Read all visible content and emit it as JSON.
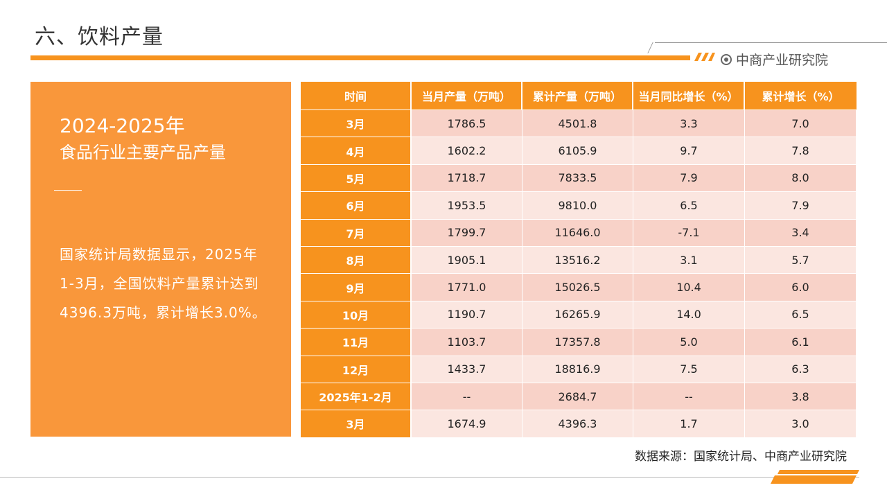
{
  "header": {
    "title": "六、饮料产量",
    "brand": "中商产业研究院"
  },
  "left_panel": {
    "year": "2024-2025年",
    "subtitle": "食品行业主要产品产量",
    "body": "国家统计局数据显示，2025年1-3月，全国饮料产量累计达到4396.3万吨，累计增长3.0%。"
  },
  "table": {
    "headers": [
      "时间",
      "当月产量（万吨）",
      "累计产量（万吨）",
      "当月同比增长（%）",
      "累计增长（%）"
    ],
    "rows": [
      [
        "3月",
        "1786.5",
        "4501.8",
        "3.3",
        "7.0"
      ],
      [
        "4月",
        "1602.2",
        "6105.9",
        "9.7",
        "7.8"
      ],
      [
        "5月",
        "1718.7",
        "7833.5",
        "7.9",
        "8.0"
      ],
      [
        "6月",
        "1953.5",
        "9810.0",
        "6.5",
        "7.9"
      ],
      [
        "7月",
        "1799.7",
        "11646.0",
        "-7.1",
        "3.4"
      ],
      [
        "8月",
        "1905.1",
        "13516.2",
        "3.1",
        "5.7"
      ],
      [
        "9月",
        "1771.0",
        "15026.5",
        "10.4",
        "6.0"
      ],
      [
        "10月",
        "1190.7",
        "16265.9",
        "14.0",
        "6.5"
      ],
      [
        "11月",
        "1103.7",
        "17357.8",
        "5.0",
        "6.1"
      ],
      [
        "12月",
        "1433.7",
        "18816.9",
        "7.5",
        "6.3"
      ],
      [
        "2025年1-2月",
        "--",
        "2684.7",
        "--",
        "3.8"
      ],
      [
        "3月",
        "1674.9",
        "4396.3",
        "1.7",
        "3.0"
      ]
    ]
  },
  "footer": {
    "source": "数据来源：国家统计局、中商产业研究院"
  },
  "colors": {
    "accent": "#F7931E",
    "panel": "#F9973B",
    "row_odd": "#F8D2C8",
    "row_even": "#FBE6E0"
  }
}
